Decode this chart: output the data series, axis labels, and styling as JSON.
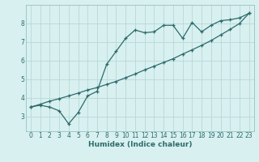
{
  "xlabel": "Humidex (Indice chaleur)",
  "bg_color": "#d8f0f0",
  "grid_color": "#b8d8d8",
  "line_color": "#2d6b6b",
  "xlim": [
    -0.5,
    23.5
  ],
  "ylim": [
    2.2,
    9.0
  ],
  "xticks": [
    0,
    1,
    2,
    3,
    4,
    5,
    6,
    7,
    8,
    9,
    10,
    11,
    12,
    13,
    14,
    15,
    16,
    17,
    18,
    19,
    20,
    21,
    22,
    23
  ],
  "yticks": [
    3,
    4,
    5,
    6,
    7,
    8
  ],
  "line1_x": [
    0,
    1,
    2,
    3,
    4,
    5,
    6,
    7,
    8,
    9,
    10,
    11,
    12,
    13,
    14,
    15,
    16,
    17,
    18,
    19,
    20,
    21,
    22,
    23
  ],
  "line1_y": [
    3.5,
    3.6,
    3.5,
    3.3,
    2.6,
    3.2,
    4.1,
    4.35,
    5.8,
    6.5,
    7.2,
    7.65,
    7.5,
    7.55,
    7.9,
    7.9,
    7.2,
    8.05,
    7.55,
    7.9,
    8.15,
    8.2,
    8.3,
    8.55
  ],
  "line2_x": [
    0,
    1,
    2,
    3,
    4,
    5,
    6,
    7,
    8,
    9,
    10,
    11,
    12,
    13,
    14,
    15,
    16,
    17,
    18,
    19,
    20,
    21,
    22,
    23
  ],
  "line2_y": [
    3.5,
    3.65,
    3.82,
    3.95,
    4.1,
    4.25,
    4.42,
    4.55,
    4.72,
    4.88,
    5.08,
    5.28,
    5.5,
    5.7,
    5.9,
    6.1,
    6.35,
    6.58,
    6.82,
    7.08,
    7.38,
    7.68,
    8.0,
    8.55
  ]
}
